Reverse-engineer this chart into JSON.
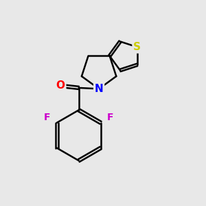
{
  "background_color": "#e8e8e8",
  "bond_color": "#000000",
  "bond_width": 1.8,
  "atom_colors": {
    "O": "#ff0000",
    "N": "#0000ff",
    "F": "#cc00cc",
    "S": "#cccc00",
    "C": "#000000"
  },
  "font_size": 10
}
